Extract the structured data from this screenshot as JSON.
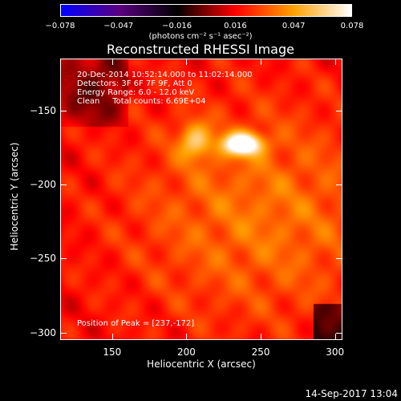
{
  "colorbar": {
    "ticks": [
      "−0.078",
      "−0.047",
      "−0.016",
      "0.016",
      "0.047",
      "0.078"
    ],
    "label": "(photons cm⁻² s⁻¹ asec⁻²)",
    "colors": [
      "#0000ff",
      "#5a0080",
      "#000000",
      "#ff0000",
      "#ffa000",
      "#ffffff"
    ]
  },
  "chart_data": {
    "type": "heatmap",
    "title": "Reconstructed RHESSI Image",
    "xlabel": "Heliocentric X (arcsec)",
    "ylabel": "Heliocentric Y (arcsec)",
    "xlim": [
      115,
      305
    ],
    "ylim": [
      -305,
      -115
    ],
    "xticks": [
      "150",
      "200",
      "250",
      "300"
    ],
    "yticks": [
      "−150",
      "−200",
      "−250",
      "−300"
    ],
    "zlim": [
      -0.078,
      0.078
    ],
    "peak": {
      "x": 237,
      "y": -172
    }
  },
  "annotations": {
    "time_range": "20-Dec-2014 10:52:14.000 to 11:02:14.000",
    "detectors": "Detectors: 3F 6F 7F 9F, Att 0",
    "energy": "Energy Range: 6.0 - 12.0 keV",
    "clean": "Clean     Total counts: 6.69E+04",
    "peak_position": "Position of Peak = [237,-172]"
  },
  "footer": {
    "date": "14-Sep-2017 13:04"
  }
}
